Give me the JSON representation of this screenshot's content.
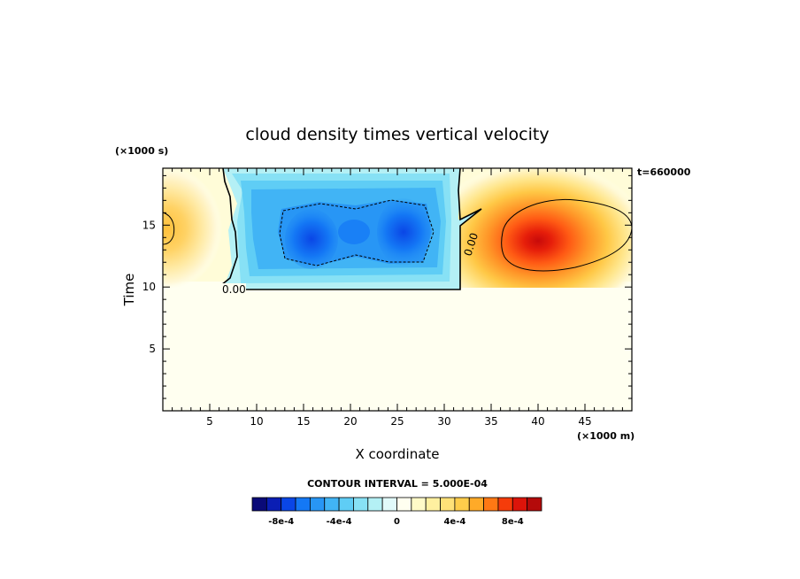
{
  "chart_data": {
    "type": "heatmap",
    "title": "cloud density times vertical velocity",
    "xlabel": "X coordinate",
    "ylabel": "Time",
    "x_unit": "(×1000 m)",
    "y_unit": "(×1000 s)",
    "time_stamp": "t=660000",
    "xlim": [
      0,
      50
    ],
    "ylim": [
      0,
      19.6
    ],
    "x_ticks": [
      5,
      10,
      15,
      20,
      25,
      30,
      35,
      40,
      45
    ],
    "y_ticks": [
      5,
      10,
      15
    ],
    "contour_interval_text": "CONTOUR INTERVAL = 5.000E-04",
    "contour_interval": 0.0005,
    "zero_contour_label": "0.00",
    "colorbar": {
      "colors": [
        "#0a0a78",
        "#0a1eb4",
        "#0a46e6",
        "#1478f5",
        "#2896f5",
        "#41b4f5",
        "#5fcdf5",
        "#87e1f5",
        "#b4f0f5",
        "#e1fafa",
        "#fffff0",
        "#fffac8",
        "#fff0a0",
        "#ffe178",
        "#ffcd4b",
        "#ffaa28",
        "#ff7814",
        "#f53c0a",
        "#dc140a",
        "#b40a0a"
      ],
      "tick_labels": [
        "-8e-4",
        "-4e-4",
        "0",
        "4e-4",
        "8e-4"
      ],
      "tick_values": [
        -0.0008,
        -0.0004,
        0,
        0.0004,
        0.0008
      ]
    },
    "features": [
      {
        "name": "negative band",
        "x_range": [
          6.5,
          31.5
        ],
        "t_range": [
          10,
          19.6
        ],
        "min": -0.00085
      },
      {
        "name": "negative core left",
        "x": 16,
        "t": 14.2,
        "value": -0.00075
      },
      {
        "name": "negative core right",
        "x": 25.5,
        "t": 14.5,
        "value": -0.00085
      },
      {
        "name": "positive core right",
        "x": 40,
        "t": 14,
        "value": 0.00095
      },
      {
        "name": "positive cell left edge",
        "x": 0.5,
        "t": 15,
        "value": 0.0004
      }
    ]
  }
}
